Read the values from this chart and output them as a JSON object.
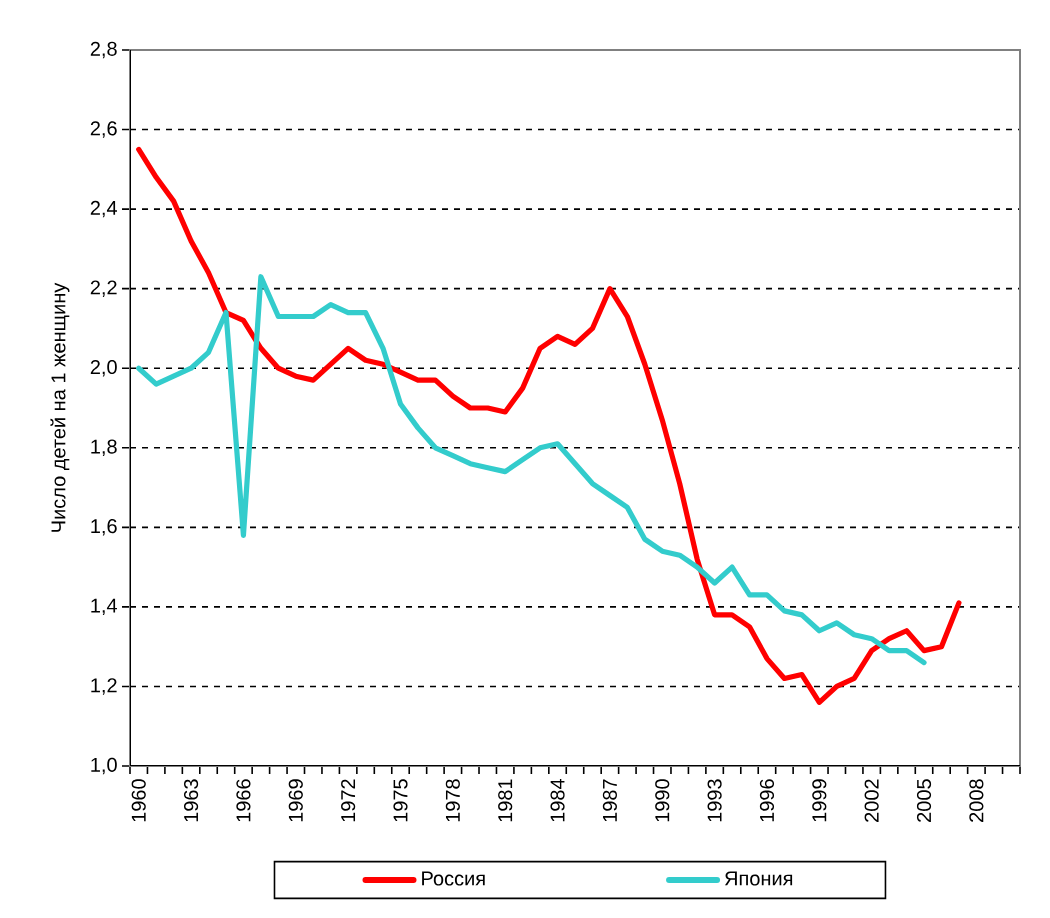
{
  "chart_data": {
    "type": "line",
    "ylabel": "Число детей на 1 женщину",
    "categories": [
      "1960",
      null,
      null,
      "1963",
      null,
      null,
      "1966",
      null,
      null,
      "1969",
      null,
      null,
      "1972",
      null,
      null,
      "1975",
      null,
      null,
      "1978",
      null,
      null,
      "1981",
      null,
      null,
      "1984",
      null,
      null,
      "1987",
      null,
      null,
      "1990",
      null,
      null,
      "1993",
      null,
      null,
      "1996",
      null,
      null,
      "1999",
      null,
      null,
      "2002",
      null,
      null,
      "2005",
      null,
      null,
      "2008",
      null,
      null
    ],
    "series": [
      {
        "name": "Россия",
        "color": "#ff0000",
        "values": [
          2.55,
          2.48,
          2.42,
          2.32,
          2.24,
          2.14,
          2.12,
          2.05,
          2.0,
          1.98,
          1.97,
          2.01,
          2.05,
          2.02,
          2.01,
          1.99,
          1.97,
          1.97,
          1.93,
          1.9,
          1.9,
          1.89,
          1.95,
          2.05,
          2.08,
          2.06,
          2.1,
          2.2,
          2.13,
          2.01,
          1.87,
          1.71,
          1.52,
          1.38,
          1.38,
          1.35,
          1.27,
          1.22,
          1.23,
          1.16,
          1.2,
          1.22,
          1.29,
          1.32,
          1.34,
          1.29,
          1.3,
          1.41,
          null,
          null,
          null
        ]
      },
      {
        "name": "Япония",
        "color": "#33cccc",
        "values": [
          2.0,
          1.96,
          1.98,
          2.0,
          2.04,
          2.14,
          1.58,
          2.23,
          2.13,
          2.13,
          2.13,
          2.16,
          2.14,
          2.14,
          2.05,
          1.91,
          1.85,
          1.8,
          1.78,
          1.76,
          1.75,
          1.74,
          1.77,
          1.8,
          1.81,
          1.76,
          1.71,
          1.68,
          1.65,
          1.57,
          1.54,
          1.53,
          1.5,
          1.46,
          1.5,
          1.43,
          1.43,
          1.39,
          1.38,
          1.34,
          1.36,
          1.33,
          1.32,
          1.29,
          1.29,
          1.26,
          null,
          null,
          null,
          null,
          null
        ]
      }
    ],
    "ylim": [
      1.0,
      2.8
    ],
    "yticks": [
      {
        "value": 1.0,
        "label": "1,0"
      },
      {
        "value": 1.2,
        "label": "1,2"
      },
      {
        "value": 1.4,
        "label": "1,4"
      },
      {
        "value": 1.6,
        "label": "1,6"
      },
      {
        "value": 1.8,
        "label": "1,8"
      },
      {
        "value": 2.0,
        "label": "2,0"
      },
      {
        "value": 2.2,
        "label": "2,2"
      },
      {
        "value": 2.4,
        "label": "2,4"
      },
      {
        "value": 2.6,
        "label": "2,6"
      },
      {
        "value": 2.8,
        "label": "2,8"
      }
    ],
    "grid": "y",
    "legend": "bottom",
    "line_style": "solid"
  }
}
